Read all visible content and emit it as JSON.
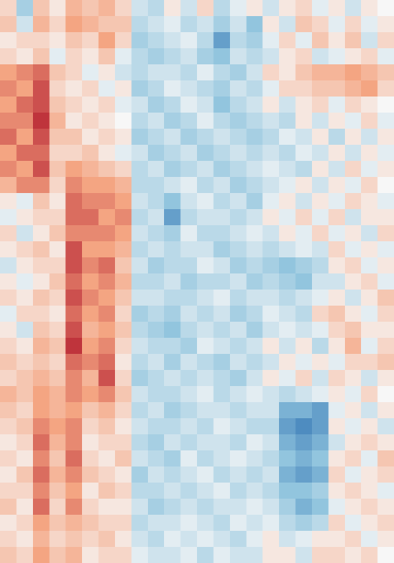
{
  "chart_data": {
    "type": "heatmap",
    "zlim": [
      -1,
      1
    ],
    "colorscale": [
      "#2166ac",
      "#92c5de",
      "#f7f7f7",
      "#f4a582",
      "#b2182b"
    ],
    "values": [
      [
        0.2,
        -0.4,
        0.3,
        0.1,
        0.4,
        0.3,
        0.4,
        0.2,
        -0.2,
        -0.3,
        0.1,
        -0.2,
        0.2,
        -0.3,
        -0.1,
        0.1,
        -0.2,
        0.1,
        0.2,
        -0.1,
        0.1,
        -0.2,
        0.1,
        0.0
      ],
      [
        0.3,
        -0.2,
        0.4,
        0.2,
        0.5,
        0.4,
        0.3,
        0.3,
        -0.3,
        -0.2,
        -0.1,
        -0.3,
        -0.2,
        -0.4,
        -0.2,
        -0.5,
        0.1,
        -0.2,
        0.3,
        0.2,
        -0.1,
        0.2,
        -0.1,
        0.1
      ],
      [
        0.1,
        0.2,
        0.2,
        0.1,
        0.3,
        0.2,
        0.5,
        0.2,
        -0.4,
        -0.3,
        -0.2,
        -0.1,
        -0.3,
        -0.7,
        -0.3,
        -0.4,
        -0.1,
        0.2,
        -0.1,
        0.3,
        0.1,
        0.3,
        -0.2,
        0.2
      ],
      [
        0.2,
        0.1,
        0.3,
        -0.1,
        0.2,
        0.1,
        0.3,
        -0.1,
        -0.3,
        -0.4,
        -0.3,
        -0.2,
        -0.4,
        -0.5,
        -0.2,
        -0.3,
        -0.2,
        0.1,
        0.2,
        -0.2,
        -0.1,
        0.1,
        0.2,
        -0.1
      ],
      [
        0.5,
        0.6,
        0.7,
        0.3,
        0.2,
        -0.1,
        0.1,
        -0.2,
        -0.3,
        -0.2,
        -0.2,
        -0.3,
        -0.1,
        -0.3,
        -0.4,
        -0.2,
        0.2,
        0.1,
        0.3,
        0.4,
        0.4,
        0.5,
        0.4,
        0.3
      ],
      [
        0.6,
        0.5,
        0.8,
        0.2,
        0.1,
        0.2,
        -0.1,
        0.1,
        -0.4,
        -0.3,
        -0.1,
        -0.2,
        -0.3,
        -0.4,
        -0.2,
        -0.3,
        -0.1,
        0.2,
        0.2,
        0.3,
        0.3,
        0.4,
        0.5,
        0.2
      ],
      [
        0.5,
        0.7,
        0.8,
        0.3,
        0.2,
        0.1,
        0.2,
        -0.1,
        -0.2,
        -0.4,
        -0.3,
        -0.1,
        -0.2,
        -0.5,
        -0.3,
        -0.2,
        0.1,
        -0.2,
        0.1,
        0.2,
        -0.1,
        0.2,
        0.1,
        0.0
      ],
      [
        0.6,
        0.6,
        0.9,
        0.4,
        0.1,
        0.2,
        0.1,
        0.0,
        -0.3,
        -0.2,
        -0.4,
        -0.3,
        -0.1,
        -0.3,
        -0.4,
        -0.3,
        -0.2,
        -0.3,
        0.1,
        -0.2,
        0.1,
        -0.1,
        0.2,
        -0.1
      ],
      [
        0.7,
        0.5,
        0.8,
        0.3,
        0.3,
        0.1,
        0.2,
        0.1,
        -0.4,
        -0.3,
        -0.2,
        -0.4,
        -0.3,
        -0.2,
        -0.3,
        -0.4,
        -0.3,
        -0.1,
        -0.2,
        0.1,
        -0.3,
        0.1,
        -0.2,
        0.1
      ],
      [
        0.5,
        0.7,
        0.7,
        0.2,
        0.2,
        0.3,
        0.1,
        -0.1,
        -0.2,
        -0.4,
        -0.3,
        -0.2,
        -0.4,
        -0.3,
        -0.2,
        -0.3,
        -0.2,
        -0.3,
        -0.1,
        -0.2,
        0.1,
        -0.2,
        0.1,
        -0.1
      ],
      [
        0.6,
        0.5,
        0.8,
        0.3,
        0.5,
        0.4,
        0.3,
        0.2,
        -0.3,
        -0.2,
        -0.4,
        -0.3,
        -0.2,
        -0.4,
        -0.3,
        -0.2,
        -0.1,
        -0.2,
        -0.3,
        0.1,
        -0.2,
        0.2,
        -0.1,
        0.1
      ],
      [
        0.4,
        0.6,
        0.6,
        0.2,
        0.6,
        0.5,
        0.5,
        0.4,
        -0.3,
        -0.3,
        -0.2,
        -0.1,
        -0.3,
        -0.2,
        -0.4,
        -0.3,
        -0.2,
        -0.1,
        0.1,
        -0.2,
        0.1,
        -0.1,
        0.2,
        0.0
      ],
      [
        0.1,
        -0.1,
        0.3,
        0.1,
        0.7,
        0.6,
        0.6,
        0.5,
        -0.2,
        -0.3,
        -0.5,
        -0.2,
        -0.1,
        -0.3,
        -0.2,
        -0.4,
        -0.1,
        0.1,
        -0.2,
        0.1,
        -0.1,
        0.2,
        0.1,
        -0.1
      ],
      [
        -0.1,
        0.1,
        0.2,
        0.2,
        0.7,
        0.7,
        0.5,
        0.6,
        -0.3,
        -0.2,
        -0.7,
        -0.3,
        -0.2,
        -0.2,
        -0.3,
        -0.2,
        0.1,
        -0.1,
        0.2,
        -0.1,
        0.2,
        -0.2,
        0.1,
        0.1
      ],
      [
        0.2,
        -0.2,
        0.1,
        0.3,
        0.6,
        0.6,
        0.6,
        0.5,
        -0.2,
        -0.3,
        -0.4,
        -0.1,
        -0.3,
        -0.3,
        -0.2,
        -0.1,
        -0.2,
        0.1,
        -0.1,
        0.2,
        -0.1,
        0.1,
        -0.2,
        0.2
      ],
      [
        0.1,
        0.2,
        0.3,
        0.1,
        0.8,
        0.5,
        0.5,
        0.4,
        -0.3,
        -0.2,
        -0.3,
        -0.2,
        -0.2,
        -0.4,
        -0.3,
        -0.2,
        -0.3,
        -0.2,
        -0.1,
        -0.2,
        0.2,
        -0.1,
        0.1,
        -0.1
      ],
      [
        -0.2,
        0.1,
        0.2,
        0.2,
        0.8,
        0.6,
        0.7,
        0.3,
        -0.2,
        -0.4,
        -0.3,
        -0.3,
        -0.1,
        -0.2,
        -0.4,
        -0.3,
        -0.4,
        -0.5,
        -0.4,
        -0.3,
        0.1,
        0.2,
        -0.1,
        0.1
      ],
      [
        0.1,
        -0.1,
        0.1,
        0.3,
        0.7,
        0.5,
        0.6,
        0.4,
        -0.3,
        -0.3,
        -0.2,
        -0.4,
        -0.3,
        -0.3,
        -0.2,
        -0.4,
        -0.3,
        -0.4,
        -0.5,
        -0.2,
        -0.2,
        0.1,
        0.2,
        -0.1
      ],
      [
        0.2,
        0.1,
        0.3,
        0.2,
        0.8,
        0.6,
        0.5,
        0.3,
        -0.2,
        -0.2,
        -0.3,
        -0.3,
        -0.2,
        -0.1,
        -0.3,
        -0.2,
        -0.2,
        -0.3,
        -0.2,
        -0.1,
        0.1,
        -0.2,
        0.1,
        0.3
      ],
      [
        -0.1,
        0.2,
        0.2,
        0.1,
        0.7,
        0.5,
        0.6,
        0.2,
        -0.4,
        -0.3,
        -0.4,
        -0.2,
        -0.3,
        -0.2,
        -0.4,
        -0.3,
        -0.1,
        -0.2,
        -0.3,
        0.2,
        0.3,
        0.1,
        -0.1,
        0.2
      ],
      [
        0.1,
        -0.2,
        0.3,
        0.2,
        0.8,
        0.4,
        0.5,
        0.3,
        -0.3,
        -0.4,
        -0.5,
        -0.3,
        -0.2,
        -0.3,
        -0.2,
        -0.4,
        -0.2,
        -0.1,
        -0.2,
        -0.1,
        0.2,
        0.3,
        0.1,
        0.1
      ],
      [
        0.2,
        0.1,
        0.4,
        0.3,
        0.9,
        0.5,
        0.6,
        0.2,
        -0.2,
        -0.3,
        -0.3,
        -0.4,
        -0.1,
        -0.2,
        -0.3,
        -0.2,
        0.1,
        -0.2,
        0.1,
        -0.3,
        0.1,
        0.4,
        -0.1,
        0.2
      ],
      [
        0.3,
        0.2,
        0.3,
        0.2,
        0.7,
        0.6,
        0.7,
        0.1,
        -0.3,
        -0.2,
        -0.4,
        -0.2,
        -0.3,
        -0.4,
        -0.2,
        -0.3,
        -0.2,
        0.1,
        -0.1,
        0.1,
        -0.1,
        0.2,
        0.2,
        0.3
      ],
      [
        0.2,
        0.3,
        0.4,
        0.3,
        0.6,
        0.4,
        0.8,
        0.2,
        -0.4,
        -0.3,
        -0.2,
        -0.3,
        -0.2,
        -0.3,
        -0.4,
        -0.2,
        0.1,
        -0.1,
        0.2,
        -0.2,
        0.2,
        0.1,
        -0.2,
        0.1
      ],
      [
        0.4,
        0.3,
        0.5,
        0.4,
        0.6,
        0.5,
        0.6,
        0.3,
        -0.2,
        -0.3,
        -0.3,
        -0.2,
        -0.1,
        -0.3,
        -0.2,
        -0.1,
        -0.2,
        -0.3,
        -0.2,
        -0.1,
        0.1,
        -0.1,
        0.2,
        0.0
      ],
      [
        0.3,
        0.2,
        0.5,
        0.4,
        0.5,
        0.3,
        0.4,
        0.2,
        -0.3,
        -0.2,
        -0.4,
        -0.3,
        -0.2,
        -0.2,
        -0.3,
        -0.2,
        -0.2,
        -0.6,
        -0.6,
        -0.7,
        -0.1,
        0.1,
        -0.2,
        0.1
      ],
      [
        0.2,
        0.3,
        0.6,
        0.5,
        0.6,
        0.2,
        0.3,
        0.1,
        -0.2,
        -0.3,
        -0.3,
        -0.2,
        -0.3,
        -0.1,
        -0.2,
        -0.3,
        -0.3,
        -0.7,
        -0.8,
        -0.7,
        0.1,
        -0.1,
        0.1,
        -0.2
      ],
      [
        0.1,
        0.2,
        0.7,
        0.4,
        0.6,
        0.1,
        0.2,
        0.2,
        -0.3,
        -0.4,
        -0.2,
        -0.3,
        -0.2,
        -0.2,
        -0.3,
        -0.1,
        -0.2,
        -0.6,
        -0.7,
        -0.6,
        -0.2,
        0.1,
        0.2,
        0.1
      ],
      [
        0.2,
        0.1,
        0.6,
        0.3,
        0.7,
        0.2,
        0.1,
        0.3,
        -0.2,
        -0.3,
        -0.4,
        -0.1,
        -0.3,
        -0.2,
        -0.1,
        -0.2,
        -0.3,
        -0.5,
        -0.6,
        -0.5,
        0.1,
        0.2,
        -0.1,
        0.3
      ],
      [
        0.1,
        0.3,
        0.7,
        0.4,
        0.6,
        0.3,
        0.2,
        0.1,
        -0.4,
        -0.2,
        -0.3,
        -0.2,
        -0.1,
        -0.3,
        -0.2,
        -0.3,
        -0.2,
        -0.6,
        -0.7,
        -0.6,
        0.2,
        -0.1,
        0.1,
        0.2
      ],
      [
        0.2,
        0.2,
        0.6,
        0.3,
        0.5,
        0.1,
        0.3,
        0.2,
        -0.3,
        -0.3,
        -0.2,
        -0.3,
        -0.2,
        -0.1,
        -0.3,
        -0.2,
        -0.3,
        -0.5,
        -0.5,
        -0.4,
        0.1,
        0.2,
        0.1,
        -0.1
      ],
      [
        0.3,
        0.1,
        0.7,
        0.2,
        0.6,
        0.2,
        0.1,
        0.1,
        -0.2,
        -0.4,
        -0.3,
        -0.2,
        -0.3,
        -0.2,
        -0.2,
        -0.1,
        -0.2,
        -0.4,
        -0.6,
        -0.5,
        -0.1,
        0.1,
        0.2,
        0.1
      ],
      [
        0.1,
        0.2,
        0.5,
        0.3,
        0.4,
        0.3,
        0.2,
        0.2,
        -0.3,
        -0.2,
        -0.2,
        -0.1,
        -0.2,
        -0.3,
        -0.1,
        -0.2,
        -0.1,
        -0.3,
        -0.4,
        -0.3,
        0.2,
        -0.1,
        0.1,
        0.2
      ],
      [
        0.2,
        0.1,
        0.4,
        0.2,
        0.3,
        0.2,
        0.3,
        0.1,
        -0.2,
        -0.3,
        -0.1,
        -0.2,
        -0.1,
        -0.2,
        -0.3,
        -0.1,
        0.1,
        -0.2,
        -0.1,
        0.1,
        0.1,
        0.2,
        -0.1,
        0.1
      ],
      [
        0.3,
        0.2,
        0.5,
        0.3,
        0.4,
        0.1,
        0.2,
        0.2,
        -0.1,
        -0.2,
        -0.2,
        -0.1,
        -0.3,
        -0.1,
        -0.2,
        -0.2,
        0.1,
        0.1,
        -0.2,
        0.2,
        0.2,
        0.1,
        0.2,
        0.0
      ]
    ]
  }
}
